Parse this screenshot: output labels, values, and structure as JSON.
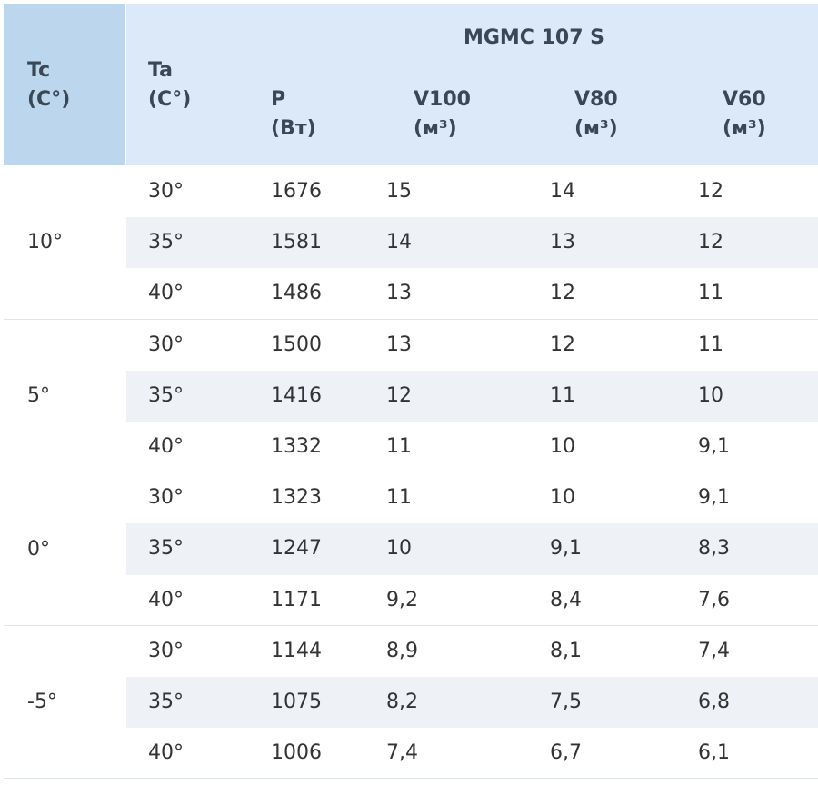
{
  "table": {
    "title": "MGMC 107 S",
    "columns": [
      {
        "label": "Tc",
        "unit": "(C°)"
      },
      {
        "label": "Ta",
        "unit": "(C°)"
      },
      {
        "label": "P",
        "unit": "(Вт)"
      },
      {
        "label": "V100",
        "unit": "(м³)"
      },
      {
        "label": "V80",
        "unit": "(м³)"
      },
      {
        "label": "V60",
        "unit": "(м³)"
      }
    ],
    "groups": [
      {
        "tc": "10°",
        "rows": [
          [
            "30°",
            "1676",
            "15",
            "14",
            "12"
          ],
          [
            "35°",
            "1581",
            "14",
            "13",
            "12"
          ],
          [
            "40°",
            "1486",
            "13",
            "12",
            "11"
          ]
        ]
      },
      {
        "tc": "5°",
        "rows": [
          [
            "30°",
            "1500",
            "13",
            "12",
            "11"
          ],
          [
            "35°",
            "1416",
            "12",
            "11",
            "10"
          ],
          [
            "40°",
            "1332",
            "11",
            "10",
            "9,1"
          ]
        ]
      },
      {
        "tc": "0°",
        "rows": [
          [
            "30°",
            "1323",
            "11",
            "10",
            "9,1"
          ],
          [
            "35°",
            "1247",
            "10",
            "9,1",
            "8,3"
          ],
          [
            "40°",
            "1171",
            "9,2",
            "8,4",
            "7,6"
          ]
        ]
      },
      {
        "tc": "-5°",
        "rows": [
          [
            "30°",
            "1144",
            "8,9",
            "8,1",
            "7,4"
          ],
          [
            "35°",
            "1075",
            "8,2",
            "7,5",
            "6,8"
          ],
          [
            "40°",
            "1006",
            "7,4",
            "6,7",
            "6,1"
          ]
        ]
      }
    ]
  }
}
